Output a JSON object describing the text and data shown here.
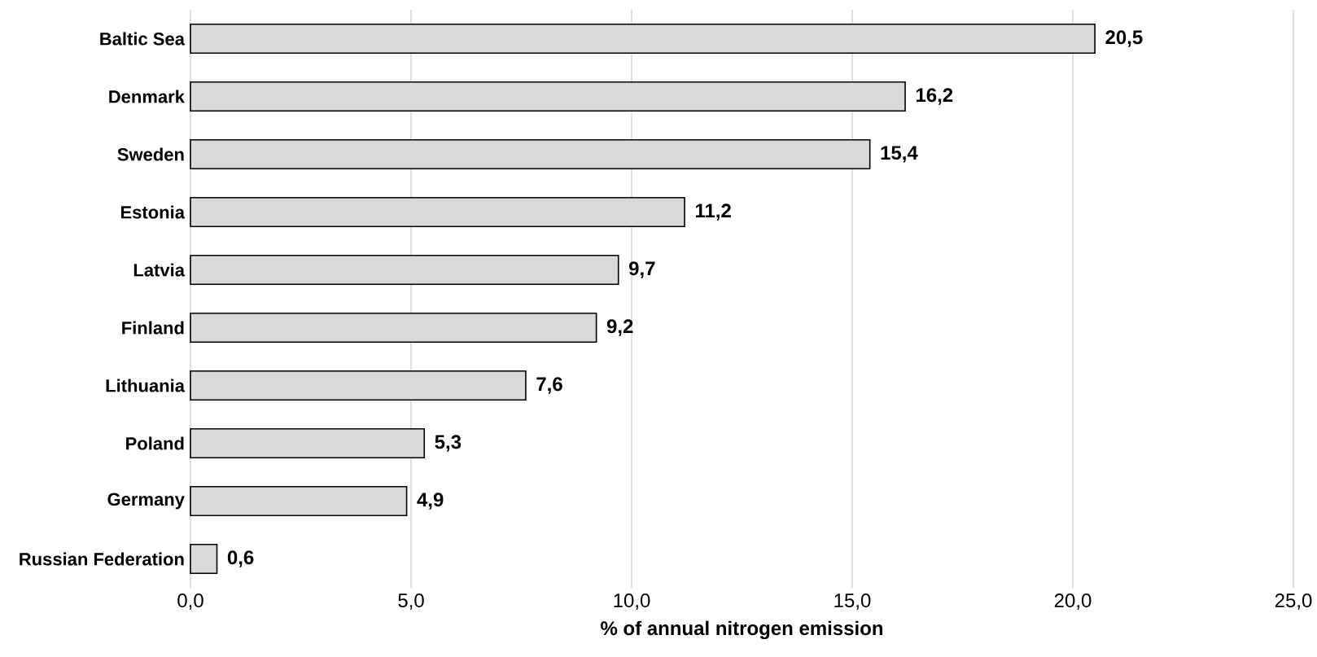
{
  "chart_data": {
    "type": "bar",
    "orientation": "horizontal",
    "xlabel": "% of annual nitrogen emission",
    "categories": [
      "Baltic Sea",
      "Denmark",
      "Sweden",
      "Estonia",
      "Latvia",
      "Finland",
      "Lithuania",
      "Poland",
      "Germany",
      "Russian Federation"
    ],
    "values": [
      20.5,
      16.2,
      15.4,
      11.2,
      9.7,
      9.2,
      7.6,
      5.3,
      4.9,
      0.6
    ],
    "value_labels": [
      "20,5",
      "16,2",
      "15,4",
      "11,2",
      "9,7",
      "9,2",
      "7,6",
      "5,3",
      "4,9",
      "0,6"
    ],
    "color": "#d9d9d9",
    "xlim": [
      0,
      25
    ],
    "xticks": [
      {
        "value": 0,
        "label": "0,0"
      },
      {
        "value": 5,
        "label": "5,0"
      },
      {
        "value": 10,
        "label": "10,0"
      },
      {
        "value": 15,
        "label": "15,0"
      },
      {
        "value": 20,
        "label": "20,0"
      },
      {
        "value": 25,
        "label": "25,0"
      }
    ],
    "grid": "x"
  }
}
